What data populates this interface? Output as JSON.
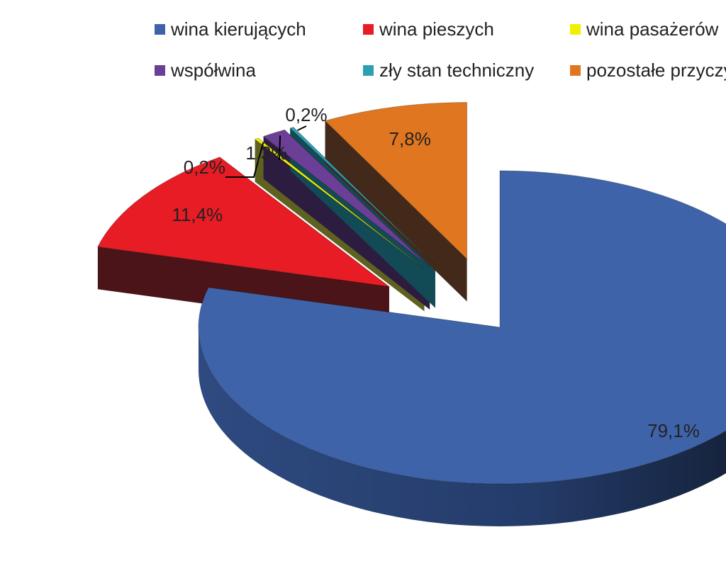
{
  "chart_data": {
    "type": "pie",
    "style": "3d-exploded",
    "title": "",
    "legend_position": "top",
    "slices": [
      {
        "name": "wina kierujących",
        "value": 79.1,
        "label": "79,1%",
        "color": "#3F63A8",
        "side_color": "#1E2F55"
      },
      {
        "name": "wina pieszych",
        "value": 11.4,
        "label": "11,4%",
        "color": "#E81C24",
        "side_color": "#4A1418"
      },
      {
        "name": "wina pasażerów",
        "value": 0.2,
        "label": "0,2%",
        "color": "#F2F000",
        "side_color": "#5F6120"
      },
      {
        "name": "współwina",
        "value": 1.3,
        "label": "1,3%",
        "color": "#6A3F95",
        "side_color": "#2C1C40"
      },
      {
        "name": "zły stan techniczny",
        "value": 0.2,
        "label": "0,2%",
        "color": "#2E9FB1",
        "side_color": "#124A55"
      },
      {
        "name": "pozostałe przyczyny",
        "value": 7.8,
        "label": "7,8%",
        "color": "#E07720",
        "side_color": "#42291A"
      }
    ]
  }
}
